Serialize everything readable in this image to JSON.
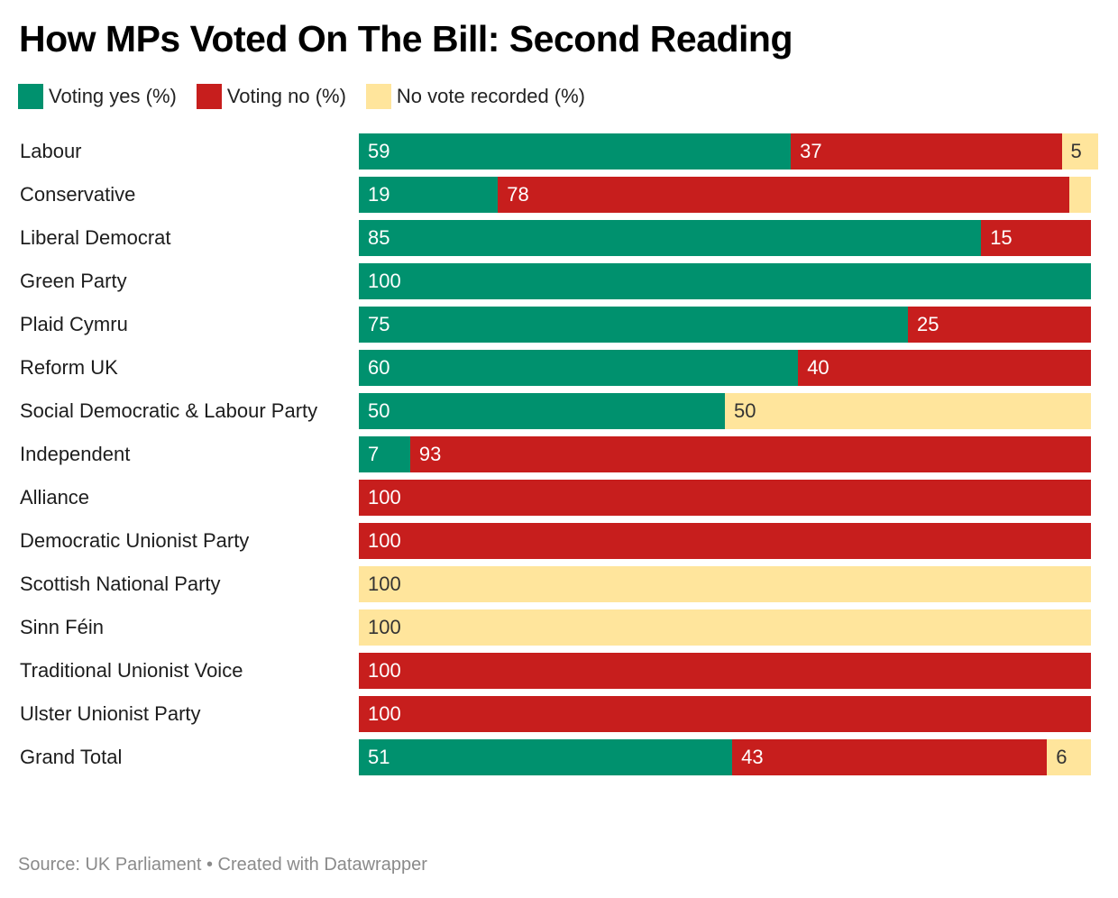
{
  "chart_data": {
    "type": "bar",
    "orientation": "horizontal",
    "stacked": true,
    "title": "How MPs Voted On The Bill: Second Reading",
    "xlabel": "",
    "ylabel": "",
    "xlim": [
      0,
      100
    ],
    "grid": false,
    "legend_position": "top-left",
    "categories": [
      "Labour",
      "Conservative",
      "Liberal Democrat",
      "Green Party",
      "Plaid Cymru",
      "Reform UK",
      "Social Democratic & Labour Party",
      "Independent",
      "Alliance",
      "Democratic Unionist Party",
      "Scottish National Party",
      "Sinn Féin",
      "Traditional Unionist Voice",
      "Ulster Unionist Party",
      "Grand Total"
    ],
    "series": [
      {
        "name": "Voting yes (%)",
        "color": "#00916e",
        "values": [
          59,
          19,
          85,
          100,
          75,
          60,
          50,
          7,
          0,
          0,
          0,
          0,
          0,
          0,
          51
        ],
        "label_color": "#ffffff"
      },
      {
        "name": "Voting no (%)",
        "color": "#c71e1d",
        "values": [
          37,
          78,
          15,
          0,
          25,
          40,
          0,
          93,
          100,
          100,
          0,
          0,
          100,
          100,
          43
        ],
        "label_color": "#ffffff"
      },
      {
        "name": "No vote recorded (%)",
        "color": "#ffe59c",
        "values": [
          5,
          3,
          0,
          0,
          0,
          0,
          50,
          0,
          0,
          0,
          100,
          100,
          0,
          0,
          6
        ],
        "label_color": "#333333"
      }
    ],
    "hidden_labels": [
      [
        1,
        2
      ]
    ]
  },
  "footer": {
    "text": "Source: UK Parliament • Created with Datawrapper"
  }
}
